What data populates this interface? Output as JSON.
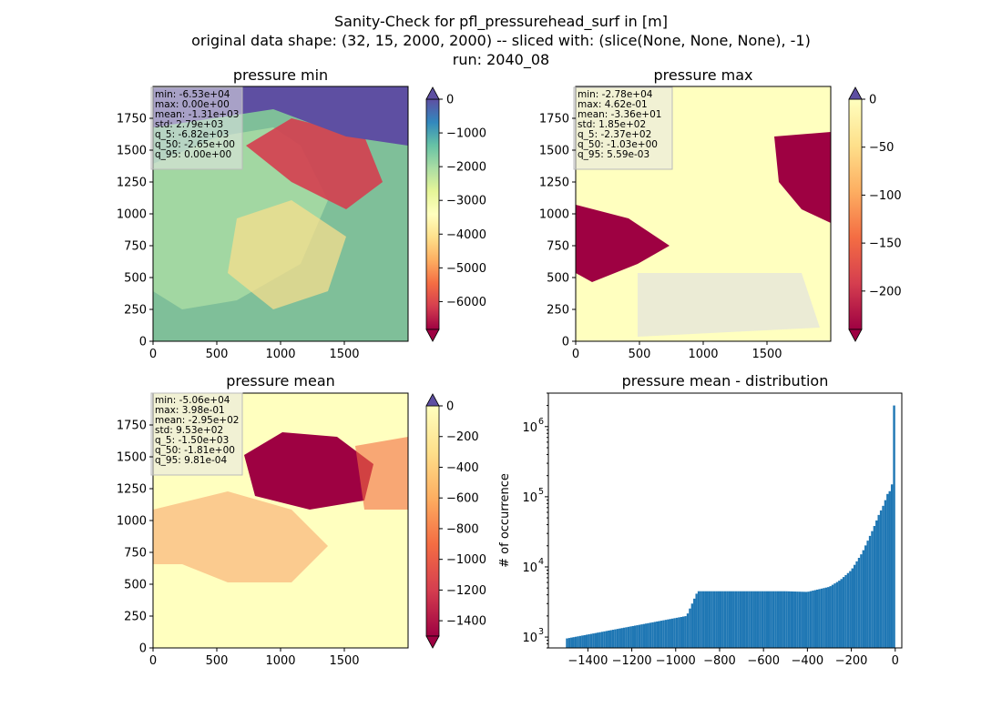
{
  "title_lines": [
    "Sanity-Check for pfl_pressurehead_surf in [m]",
    "original data shape: (32, 15, 2000, 2000) -- sliced with: (slice(None, None, None), -1)",
    "run: 2040_08"
  ],
  "chart_data": [
    {
      "type": "heatmap",
      "title": "pressure min",
      "colormap": "Spectral",
      "xlim": [
        0,
        2000
      ],
      "ylim": [
        0,
        2000
      ],
      "xticks": [
        "0",
        "500",
        "1000",
        "1500"
      ],
      "xtick_values": [
        0,
        500,
        1000,
        1500
      ],
      "yticks": [
        "0",
        "250",
        "500",
        "750",
        "1000",
        "1250",
        "1500",
        "1750"
      ],
      "ytick_values": [
        0,
        250,
        500,
        750,
        1000,
        1250,
        1500,
        1750
      ],
      "colorbar": {
        "range": [
          -6825,
          0
        ],
        "extend": "both",
        "ticks": [
          "0",
          "−1000",
          "−2000",
          "−3000",
          "−4000",
          "−5000",
          "−6000"
        ],
        "tick_values": [
          0,
          -1000,
          -2000,
          -3000,
          -4000,
          -5000,
          -6000
        ]
      },
      "stats": [
        "min: -6.53e+04",
        "max: 0.00e+00",
        "mean: -1.31e+03",
        "std: 2.79e+03",
        "q_5: -6.82e+03",
        "q_50: -2.65e+00",
        "q_95: 0.00e+00"
      ],
      "background": "mixed"
    },
    {
      "type": "heatmap",
      "title": "pressure max",
      "colormap": "Spectral",
      "xlim": [
        0,
        2000
      ],
      "ylim": [
        0,
        2000
      ],
      "xticks": [
        "0",
        "500",
        "1000",
        "1500"
      ],
      "xtick_values": [
        0,
        500,
        1000,
        1500
      ],
      "yticks": [
        "0",
        "250",
        "500",
        "750",
        "1000",
        "1250",
        "1500",
        "1750"
      ],
      "ytick_values": [
        0,
        250,
        500,
        750,
        1000,
        1250,
        1500,
        1750
      ],
      "colorbar": {
        "range": [
          -240,
          0
        ],
        "extend": "both",
        "ticks": [
          "0",
          "−50",
          "−100",
          "−150",
          "−200"
        ],
        "tick_values": [
          0,
          -50,
          -100,
          -150,
          -200
        ]
      },
      "stats": [
        "min: -2.78e+04",
        "max: 4.62e-01",
        "mean: -3.36e+01",
        "std: 1.85e+02",
        "q_5: -2.37e+02",
        "q_50: -1.03e+00",
        "q_95: 5.59e-03"
      ],
      "background": "light"
    },
    {
      "type": "heatmap",
      "title": "pressure mean",
      "colormap": "Spectral",
      "xlim": [
        0,
        2000
      ],
      "ylim": [
        0,
        2000
      ],
      "xticks": [
        "0",
        "500",
        "1000",
        "1500"
      ],
      "xtick_values": [
        0,
        500,
        1000,
        1500
      ],
      "yticks": [
        "0",
        "250",
        "500",
        "750",
        "1000",
        "1250",
        "1500",
        "1750"
      ],
      "ytick_values": [
        0,
        250,
        500,
        750,
        1000,
        1250,
        1500,
        1750
      ],
      "colorbar": {
        "range": [
          -1500,
          0
        ],
        "extend": "both",
        "ticks": [
          "0",
          "−200",
          "−400",
          "−600",
          "−800",
          "−1000",
          "−1200",
          "−1400"
        ],
        "tick_values": [
          0,
          -200,
          -400,
          -600,
          -800,
          -1000,
          -1200,
          -1400
        ]
      },
      "stats": [
        "min: -5.06e+04",
        "max: 3.98e-01",
        "mean: -2.95e+02",
        "std: 9.53e+02",
        "q_5: -1.50e+03",
        "q_50: -1.81e+00",
        "q_95: 9.81e-04"
      ],
      "background": "light"
    },
    {
      "type": "bar",
      "title": "pressure mean - distribution",
      "ylabel": "# of occurrence",
      "yscale": "log",
      "xlim": [
        -1580,
        30
      ],
      "ylim": [
        700,
        3000000
      ],
      "xticks": [
        "−1400",
        "−1200",
        "−1000",
        "−800",
        "−600",
        "−400",
        "−200",
        "0"
      ],
      "xtick_values": [
        -1400,
        -1200,
        -1000,
        -800,
        -600,
        -400,
        -200,
        0
      ],
      "yticks": [
        "10",
        "10",
        "10",
        "10"
      ],
      "ytick_exponents": [
        "3",
        "4",
        "5",
        "6"
      ],
      "ytick_values": [
        1000,
        10000,
        100000,
        1000000
      ],
      "color": "#1f77b4",
      "bins": {
        "x": [
          -1500,
          -950,
          -900,
          -500,
          -400,
          -300,
          -250,
          -200,
          -150,
          -100,
          -75,
          -50,
          -40,
          -30,
          -20,
          -10,
          -5,
          0
        ],
        "y": [
          950,
          2000,
          4500,
          4500,
          4400,
          5200,
          6500,
          9000,
          16000,
          35000,
          55000,
          80000,
          100000,
          120000,
          150000,
          160000,
          2000000,
          2000000
        ]
      }
    }
  ]
}
